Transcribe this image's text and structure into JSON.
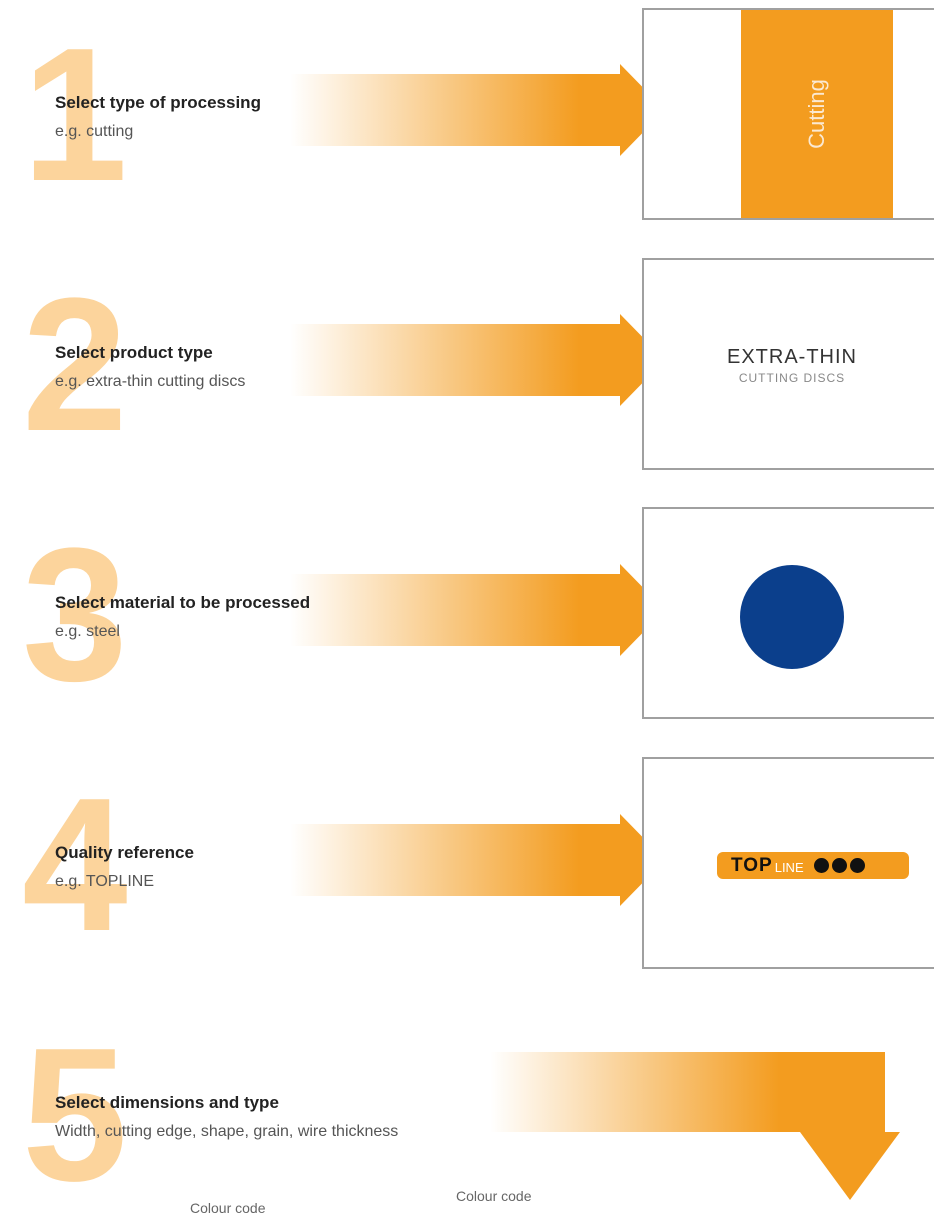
{
  "steps": [
    {
      "number": "1",
      "title": "Select type of processing",
      "subtitle": "e.g. cutting"
    },
    {
      "number": "2",
      "title": "Select product type",
      "subtitle": "e.g. extra-thin cutting discs"
    },
    {
      "number": "3",
      "title": "Select material to be processed",
      "subtitle": "e.g. steel"
    },
    {
      "number": "4",
      "title": "Quality reference",
      "subtitle": "e.g. TOPLINE"
    },
    {
      "number": "5",
      "title": "Select dimensions and type",
      "subtitle": "Width, cutting edge, shape, grain, wire thickness"
    }
  ],
  "boxes": {
    "processing": "Cutting",
    "product_line1": "EXTRA-THIN",
    "product_line2": "CUTTING DISCS",
    "quality_bold": "TOP",
    "quality_light": "LINE"
  },
  "footer": [
    "Colour code",
    "Colour code"
  ]
}
